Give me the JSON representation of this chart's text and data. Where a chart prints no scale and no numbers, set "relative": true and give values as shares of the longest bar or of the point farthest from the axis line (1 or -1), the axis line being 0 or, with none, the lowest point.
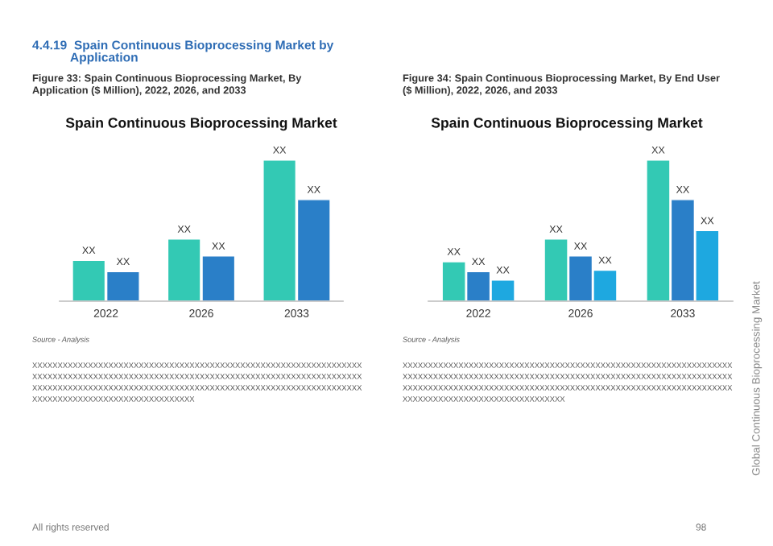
{
  "chart_data": [
    {
      "type": "bar",
      "relative": true,
      "title": "Spain Continuous Bioprocessing Market",
      "subtitle": "Figure 33: Spain Continuous Bioprocessing Market, By\nApplication ($ Million), 2022, 2026, and 2033",
      "categories": [
        "2022",
        "2026",
        "2033"
      ],
      "series": [
        {
          "color": "#33c9b4",
          "values": [
            0.29,
            0.44,
            1
          ]
        },
        {
          "color": "#2a7fc8",
          "values": [
            0.21,
            0.32,
            0.72
          ]
        }
      ],
      "annotations": [
        "4.4.19  Spain Continuous Bioprocessing Market by\n           Application",
        "Source - Analysis",
        "XXXXXXXXXXXXXXXXXXXXXXXXXXXXXXXXXXXXXXXXXXXXXXXXXXXXXXXXXXXXXXXXX\nXXXXXXXXXXXXXXXXXXXXXXXXXXXXXXXXXXXXXXXXXXXXXXXXXXXXXXXXXXXXXXXXX\nXXXXXXXXXXXXXXXXXXXXXXXXXXXXXXXXXXXXXXXXXXXXXXXXXXXXXXXXXXXXXXXXX\nXXXXXXXXXXXXXXXXXXXXXXXXXXXXXXXX",
        "All rights reserved",
        {
          "text": "XX",
          "x": "2022",
          "y": 0.29
        },
        {
          "text": "XX",
          "x": "2026",
          "y": 0.44
        },
        {
          "text": "XX",
          "x": "2033",
          "y": 1
        },
        {
          "text": "XX",
          "x": "2022",
          "y": 0.21
        },
        {
          "text": "XX",
          "x": "2026",
          "y": 0.32
        },
        {
          "text": "XX",
          "x": "2033",
          "y": 0.72
        }
      ]
    },
    {
      "type": "bar",
      "relative": true,
      "title": "Spain Continuous Bioprocessing Market",
      "subtitle": "Figure 34: Spain Continuous Bioprocessing Market, By End User\n($ Million), 2022, 2026, and 2033",
      "categories": [
        "2022",
        "2026",
        "2033"
      ],
      "series": [
        {
          "color": "#33c9b4",
          "values": [
            0.28,
            0.44,
            1
          ]
        },
        {
          "color": "#2a7fc8",
          "values": [
            0.21,
            0.32,
            0.72
          ]
        },
        {
          "color": "#1ea8e0",
          "values": [
            0.15,
            0.22,
            0.5
          ]
        }
      ],
      "annotations": [
        "Source - Analysis",
        "XXXXXXXXXXXXXXXXXXXXXXXXXXXXXXXXXXXXXXXXXXXXXXXXXXXXXXXXXXXXXXXXX\nXXXXXXXXXXXXXXXXXXXXXXXXXXXXXXXXXXXXXXXXXXXXXXXXXXXXXXXXXXXXXXXXX\nXXXXXXXXXXXXXXXXXXXXXXXXXXXXXXXXXXXXXXXXXXXXXXXXXXXXXXXXXXXXXXXXX\nXXXXXXXXXXXXXXXXXXXXXXXXXXXXXXXX",
        "Global Continuous Bioprocessing Market",
        "98",
        "XX",
        "XX",
        "XX",
        "XX",
        "XX",
        "XX",
        "XX",
        "XX",
        "XX"
      ]
    }
  ]
}
